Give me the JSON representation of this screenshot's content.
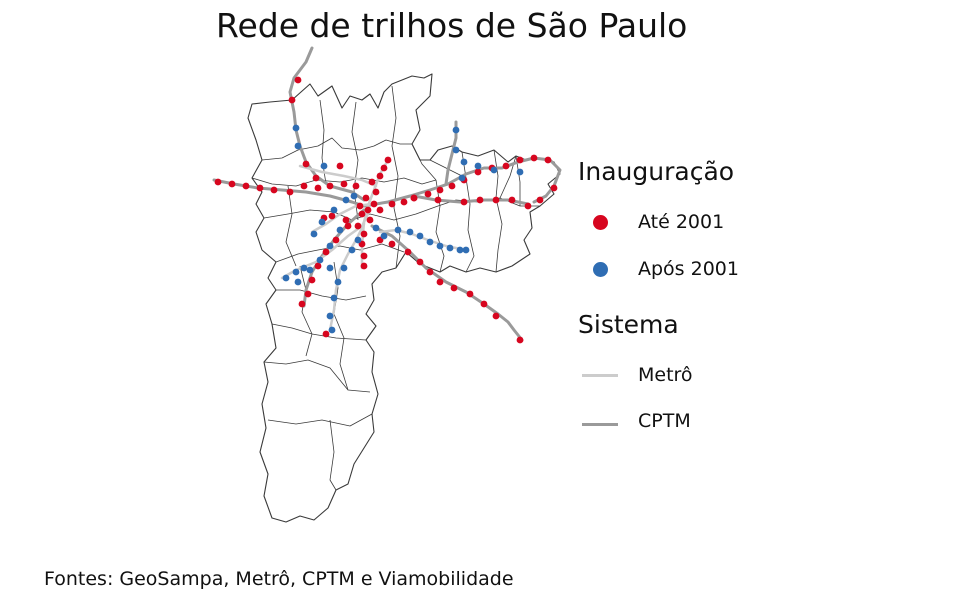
{
  "title": "Rede de trilhos de São Paulo",
  "source": "Fontes: GeoSampa, Metrô, CPTM e Viamobilidade",
  "colors": {
    "ate_2001": "#d7061f",
    "apos_2001": "#2f6db3",
    "metro": "#cccccc",
    "cptm": "#9a9a9a",
    "boundary": "#3a3a3a"
  },
  "legend": {
    "inauguracao": {
      "title": "Inauguração",
      "items": [
        {
          "label": "Até 2001",
          "color": "#d7061f"
        },
        {
          "label": "Após 2001",
          "color": "#2f6db3"
        }
      ]
    },
    "sistema": {
      "title": "Sistema",
      "items": [
        {
          "label": "Metrô",
          "color": "#cccccc"
        },
        {
          "label": "CPTM",
          "color": "#9a9a9a"
        }
      ]
    }
  }
}
